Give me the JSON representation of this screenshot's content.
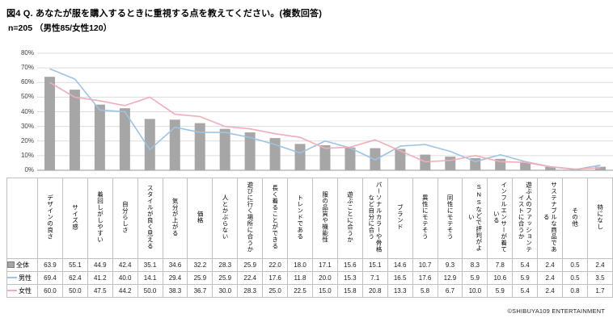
{
  "header": {
    "title": "図4 Q. あなたが服を購入するときに重視する点を教えてください。(複数回答)",
    "subtitle": "n=205 （男性85/女性120）"
  },
  "footer": {
    "copyright": "©SHIBUYA109 ENTERTAINMENT"
  },
  "chart_data": {
    "type": "bar",
    "subtype": "bar-with-lines",
    "title": "あなたが服を購入するときに重視する点",
    "categories": [
      "デザインの良さ",
      "サイズ感",
      "着回しがしやすい",
      "自分らしさ",
      "スタイルが良く見える",
      "気分が上がる",
      "価格",
      "人とかぶらない",
      "遊びに行く場所に合うか",
      "長く着ることができる",
      "トレンドである",
      "服の品質や機能性",
      "遊ぶことに合うか",
      "パーソナルカラーや骨格など自分に合う",
      "ブランド",
      "異性にモテそう",
      "同性にモテそう",
      "SNSなどで評判がよい",
      "インフルエンサーが着ている",
      "遊ぶ人のファッションテイストに合うか",
      "サステナブルな商品である",
      "その他",
      "特になし"
    ],
    "series": [
      {
        "name": "全体",
        "type": "bar",
        "color": "#a6a6a6",
        "values": [
          63.9,
          55.1,
          44.9,
          42.4,
          35.1,
          34.6,
          32.2,
          28.3,
          25.9,
          22.0,
          18.0,
          17.1,
          15.6,
          15.1,
          14.6,
          10.7,
          9.3,
          8.3,
          7.8,
          5.4,
          2.4,
          0.5,
          2.4
        ]
      },
      {
        "name": "男性",
        "type": "line",
        "color": "#9dc3e6",
        "values": [
          69.4,
          62.4,
          41.2,
          40.0,
          14.1,
          29.4,
          25.9,
          25.9,
          22.4,
          17.6,
          11.8,
          20.0,
          15.3,
          7.1,
          16.5,
          17.6,
          12.9,
          5.9,
          10.6,
          5.9,
          2.4,
          0.5,
          3.5
        ]
      },
      {
        "name": "女性",
        "type": "line",
        "color": "#f4acb7",
        "values": [
          60.0,
          50.0,
          47.5,
          44.2,
          50.0,
          38.3,
          36.7,
          30.0,
          28.3,
          25.0,
          22.5,
          15.0,
          15.8,
          20.8,
          13.3,
          5.8,
          6.7,
          10.0,
          5.9,
          5.4,
          2.4,
          0.8,
          1.7
        ]
      }
    ],
    "ylim": [
      0,
      80
    ],
    "ytick_step": 10,
    "ytick_suffix": "%",
    "grid": true,
    "legend_position": "table-left"
  }
}
